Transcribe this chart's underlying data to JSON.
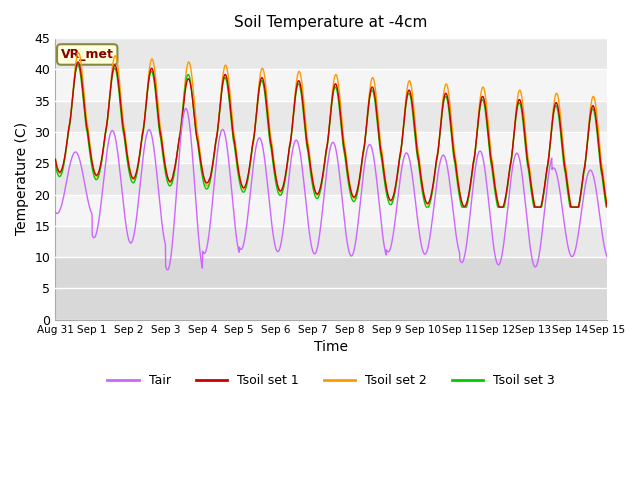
{
  "title": "Soil Temperature at -4cm",
  "xlabel": "Time",
  "ylabel": "Temperature (C)",
  "ylim": [
    0,
    45
  ],
  "yticks": [
    0,
    5,
    10,
    15,
    20,
    25,
    30,
    35,
    40,
    45
  ],
  "xtick_labels": [
    "Aug 31",
    "Sep 1",
    "Sep 2",
    "Sep 3",
    "Sep 4",
    "Sep 5",
    "Sep 6",
    "Sep 7",
    "Sep 8",
    "Sep 9",
    "Sep 10",
    "Sep 11",
    "Sep 12",
    "Sep 13",
    "Sep 14",
    "Sep 15"
  ],
  "annotation_text": "VR_met",
  "colors": {
    "Tair": "#cc66ff",
    "Tsoil1": "#cc0000",
    "Tsoil2": "#ff9900",
    "Tsoil3": "#00cc00"
  },
  "background_color": "#ffffff",
  "plot_bg_light": "#f0f0f0",
  "plot_bg_dark": "#e0e0e0",
  "legend_labels": [
    "Tair",
    "Tsoil set 1",
    "Tsoil set 2",
    "Tsoil set 3"
  ]
}
